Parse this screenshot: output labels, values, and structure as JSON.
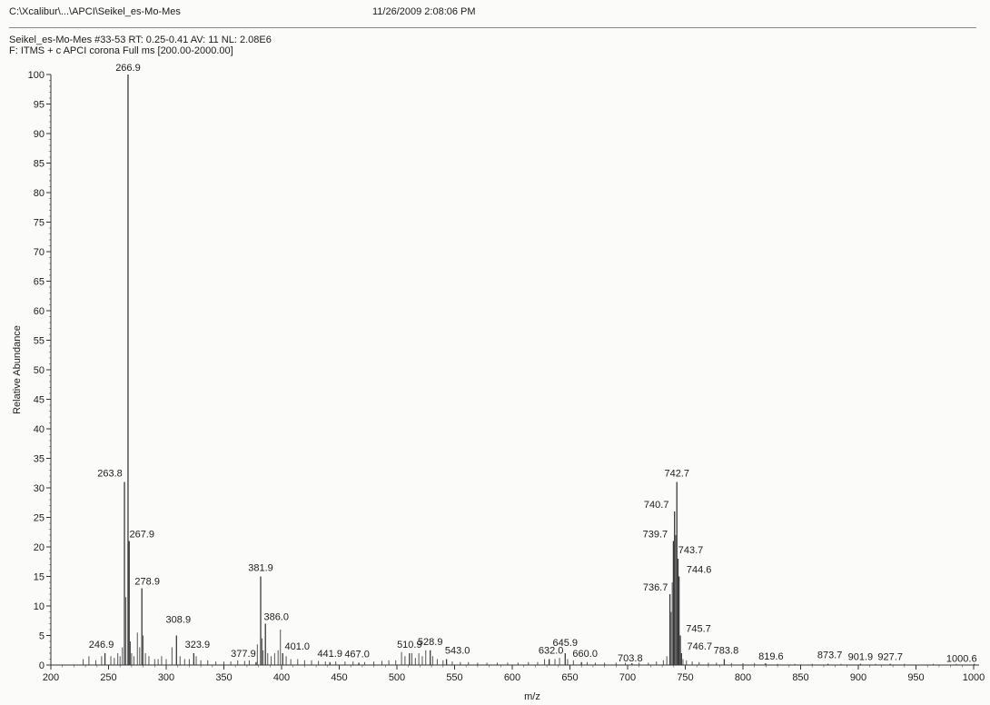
{
  "header": {
    "file_path": "C:\\Xcalibur\\...\\APCI\\Seikel_es-Mo-Mes",
    "datetime": "11/26/2009 2:08:06 PM",
    "scan_info": "Seikel_es-Mo-Mes #33-53   RT:  0.25-0.41   AV:  11   NL:  2.08E6",
    "filter": "F:  ITMS + c APCI corona Full ms [200.00-2000.00]"
  },
  "chart_data": {
    "type": "bar",
    "title": "",
    "xlabel": "m/z",
    "ylabel": "Relative Abundance",
    "xlim": [
      200,
      1000
    ],
    "ylim": [
      0,
      100
    ],
    "x_ticks": [
      200,
      250,
      300,
      350,
      400,
      450,
      500,
      550,
      600,
      650,
      700,
      750,
      800,
      850,
      900,
      950,
      1000
    ],
    "y_ticks": [
      0,
      5,
      10,
      15,
      20,
      25,
      30,
      35,
      40,
      45,
      50,
      55,
      60,
      65,
      70,
      75,
      80,
      85,
      90,
      95,
      100
    ],
    "labeled_peaks": [
      {
        "mz": 246.9,
        "label": "246.9",
        "abundance": 2
      },
      {
        "mz": 263.8,
        "label": "263.8",
        "abundance": 31
      },
      {
        "mz": 266.9,
        "label": "266.9",
        "abundance": 100
      },
      {
        "mz": 267.9,
        "label": "267.9",
        "abundance": 21
      },
      {
        "mz": 278.9,
        "label": "278.9",
        "abundance": 13
      },
      {
        "mz": 308.9,
        "label": "308.9",
        "abundance": 5
      },
      {
        "mz": 323.9,
        "label": "323.9",
        "abundance": 2
      },
      {
        "mz": 377.9,
        "label": "377.9",
        "abundance": 0.5
      },
      {
        "mz": 381.9,
        "label": "381.9",
        "abundance": 15
      },
      {
        "mz": 386.0,
        "label": "386.0",
        "abundance": 7
      },
      {
        "mz": 401.0,
        "label": "401.0",
        "abundance": 2
      },
      {
        "mz": 441.9,
        "label": "441.9",
        "abundance": 0.5
      },
      {
        "mz": 467.0,
        "label": "467.0",
        "abundance": 0.4
      },
      {
        "mz": 510.9,
        "label": "510.9",
        "abundance": 2
      },
      {
        "mz": 528.9,
        "label": "528.9",
        "abundance": 2.5
      },
      {
        "mz": 543.0,
        "label": "543.0",
        "abundance": 1
      },
      {
        "mz": 632.0,
        "label": "632.0",
        "abundance": 1
      },
      {
        "mz": 645.9,
        "label": "645.9",
        "abundance": 2
      },
      {
        "mz": 660.0,
        "label": "660.0",
        "abundance": 0.5
      },
      {
        "mz": 703.8,
        "label": "703.8",
        "abundance": 0.3
      },
      {
        "mz": 736.7,
        "label": "736.7",
        "abundance": 12
      },
      {
        "mz": 739.7,
        "label": "739.7",
        "abundance": 21
      },
      {
        "mz": 740.7,
        "label": "740.7",
        "abundance": 26
      },
      {
        "mz": 742.7,
        "label": "742.7",
        "abundance": 31
      },
      {
        "mz": 743.7,
        "label": "743.7",
        "abundance": 18
      },
      {
        "mz": 744.6,
        "label": "744.6",
        "abundance": 15
      },
      {
        "mz": 745.7,
        "label": "745.7",
        "abundance": 5
      },
      {
        "mz": 746.7,
        "label": "746.7",
        "abundance": 2
      },
      {
        "mz": 783.8,
        "label": "783.8",
        "abundance": 1
      },
      {
        "mz": 819.6,
        "label": "819.6",
        "abundance": 0.3
      },
      {
        "mz": 873.7,
        "label": "873.7",
        "abundance": 0.2
      },
      {
        "mz": 901.9,
        "label": "901.9",
        "abundance": 0.2
      },
      {
        "mz": 927.7,
        "label": "927.7",
        "abundance": 0.2
      },
      {
        "mz": 1000.6,
        "label": "1000.6",
        "abundance": 0.2
      }
    ],
    "minor_peaks": [
      {
        "mz": 228,
        "abundance": 1.0
      },
      {
        "mz": 233,
        "abundance": 1.5
      },
      {
        "mz": 239,
        "abundance": 0.8
      },
      {
        "mz": 244,
        "abundance": 1.5
      },
      {
        "mz": 252,
        "abundance": 1.5
      },
      {
        "mz": 255,
        "abundance": 1.2
      },
      {
        "mz": 258,
        "abundance": 2.0
      },
      {
        "mz": 260,
        "abundance": 1.5
      },
      {
        "mz": 262,
        "abundance": 3.0
      },
      {
        "mz": 265,
        "abundance": 11.5
      },
      {
        "mz": 268.9,
        "abundance": 4.0
      },
      {
        "mz": 270,
        "abundance": 2.0
      },
      {
        "mz": 272,
        "abundance": 1.5
      },
      {
        "mz": 275,
        "abundance": 5.5
      },
      {
        "mz": 277,
        "abundance": 3.0
      },
      {
        "mz": 280,
        "abundance": 5.0
      },
      {
        "mz": 282,
        "abundance": 2.0
      },
      {
        "mz": 285,
        "abundance": 1.5
      },
      {
        "mz": 290,
        "abundance": 1.0
      },
      {
        "mz": 293,
        "abundance": 1.0
      },
      {
        "mz": 296,
        "abundance": 1.5
      },
      {
        "mz": 300,
        "abundance": 1.0
      },
      {
        "mz": 305,
        "abundance": 3.0
      },
      {
        "mz": 312,
        "abundance": 1.5
      },
      {
        "mz": 316,
        "abundance": 1.0
      },
      {
        "mz": 320,
        "abundance": 1.0
      },
      {
        "mz": 326,
        "abundance": 1.5
      },
      {
        "mz": 330,
        "abundance": 0.8
      },
      {
        "mz": 336,
        "abundance": 0.8
      },
      {
        "mz": 343,
        "abundance": 0.6
      },
      {
        "mz": 350,
        "abundance": 0.6
      },
      {
        "mz": 356,
        "abundance": 0.6
      },
      {
        "mz": 362,
        "abundance": 0.8
      },
      {
        "mz": 368,
        "abundance": 0.7
      },
      {
        "mz": 372,
        "abundance": 0.8
      },
      {
        "mz": 379,
        "abundance": 3.5
      },
      {
        "mz": 383,
        "abundance": 4.5
      },
      {
        "mz": 384,
        "abundance": 2.5
      },
      {
        "mz": 388,
        "abundance": 2.0
      },
      {
        "mz": 391,
        "abundance": 1.5
      },
      {
        "mz": 394,
        "abundance": 2.0
      },
      {
        "mz": 397,
        "abundance": 2.5
      },
      {
        "mz": 399,
        "abundance": 6.0
      },
      {
        "mz": 404,
        "abundance": 1.5
      },
      {
        "mz": 408,
        "abundance": 1.0
      },
      {
        "mz": 414,
        "abundance": 1.0
      },
      {
        "mz": 420,
        "abundance": 0.8
      },
      {
        "mz": 426,
        "abundance": 0.8
      },
      {
        "mz": 432,
        "abundance": 0.7
      },
      {
        "mz": 438,
        "abundance": 0.6
      },
      {
        "mz": 447,
        "abundance": 0.6
      },
      {
        "mz": 455,
        "abundance": 0.6
      },
      {
        "mz": 462,
        "abundance": 0.6
      },
      {
        "mz": 472,
        "abundance": 0.5
      },
      {
        "mz": 480,
        "abundance": 0.6
      },
      {
        "mz": 487,
        "abundance": 0.7
      },
      {
        "mz": 493,
        "abundance": 0.8
      },
      {
        "mz": 499,
        "abundance": 0.8
      },
      {
        "mz": 504,
        "abundance": 2.2
      },
      {
        "mz": 507,
        "abundance": 1.5
      },
      {
        "mz": 513,
        "abundance": 2.0
      },
      {
        "mz": 516,
        "abundance": 1.2
      },
      {
        "mz": 519,
        "abundance": 2.0
      },
      {
        "mz": 522,
        "abundance": 1.5
      },
      {
        "mz": 525,
        "abundance": 2.5
      },
      {
        "mz": 531,
        "abundance": 1.5
      },
      {
        "mz": 535,
        "abundance": 1.0
      },
      {
        "mz": 540,
        "abundance": 0.8
      },
      {
        "mz": 548,
        "abundance": 0.6
      },
      {
        "mz": 555,
        "abundance": 0.5
      },
      {
        "mz": 562,
        "abundance": 0.5
      },
      {
        "mz": 570,
        "abundance": 0.4
      },
      {
        "mz": 578,
        "abundance": 0.4
      },
      {
        "mz": 587,
        "abundance": 0.4
      },
      {
        "mz": 596,
        "abundance": 0.4
      },
      {
        "mz": 605,
        "abundance": 0.4
      },
      {
        "mz": 614,
        "abundance": 0.5
      },
      {
        "mz": 622,
        "abundance": 0.5
      },
      {
        "mz": 628,
        "abundance": 1.0
      },
      {
        "mz": 637,
        "abundance": 1.0
      },
      {
        "mz": 641,
        "abundance": 1.2
      },
      {
        "mz": 648,
        "abundance": 1.0
      },
      {
        "mz": 653,
        "abundance": 0.8
      },
      {
        "mz": 665,
        "abundance": 0.5
      },
      {
        "mz": 672,
        "abundance": 0.4
      },
      {
        "mz": 680,
        "abundance": 0.4
      },
      {
        "mz": 690,
        "abundance": 0.4
      },
      {
        "mz": 698,
        "abundance": 0.4
      },
      {
        "mz": 710,
        "abundance": 0.4
      },
      {
        "mz": 718,
        "abundance": 0.4
      },
      {
        "mz": 725,
        "abundance": 0.6
      },
      {
        "mz": 731,
        "abundance": 0.8
      },
      {
        "mz": 734,
        "abundance": 1.5
      },
      {
        "mz": 737.7,
        "abundance": 9.0
      },
      {
        "mz": 738.7,
        "abundance": 14.0
      },
      {
        "mz": 741.7,
        "abundance": 22.0
      },
      {
        "mz": 748,
        "abundance": 1.0
      },
      {
        "mz": 751,
        "abundance": 0.8
      },
      {
        "mz": 756,
        "abundance": 0.6
      },
      {
        "mz": 762,
        "abundance": 0.5
      },
      {
        "mz": 770,
        "abundance": 0.4
      },
      {
        "mz": 777,
        "abundance": 0.4
      },
      {
        "mz": 790,
        "abundance": 0.3
      },
      {
        "mz": 800,
        "abundance": 0.3
      },
      {
        "mz": 810,
        "abundance": 0.3
      },
      {
        "mz": 830,
        "abundance": 0.2
      },
      {
        "mz": 845,
        "abundance": 0.2
      },
      {
        "mz": 860,
        "abundance": 0.2
      },
      {
        "mz": 885,
        "abundance": 0.2
      },
      {
        "mz": 915,
        "abundance": 0.2
      },
      {
        "mz": 940,
        "abundance": 0.2
      },
      {
        "mz": 965,
        "abundance": 0.2
      },
      {
        "mz": 985,
        "abundance": 0.2
      }
    ]
  }
}
